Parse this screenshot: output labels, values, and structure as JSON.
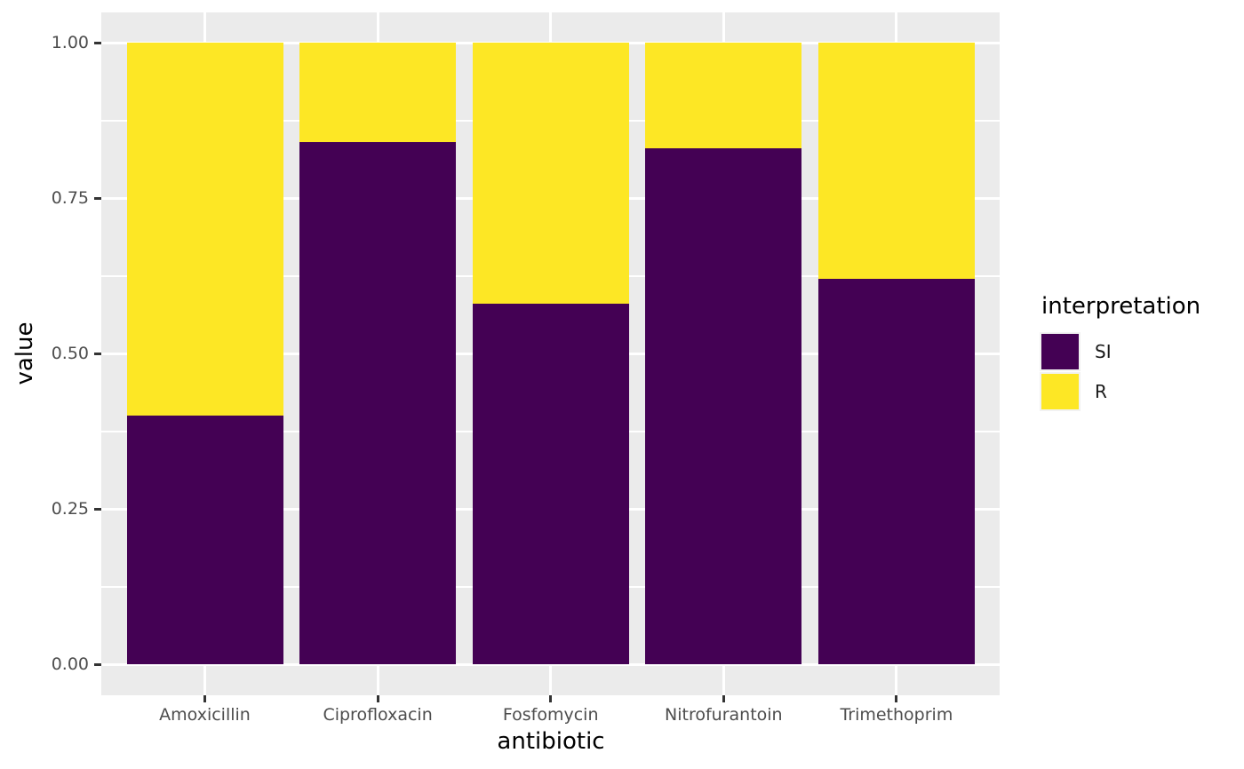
{
  "chart_data": {
    "type": "bar",
    "stacked": true,
    "xlabel": "antibiotic",
    "ylabel": "value",
    "categories": [
      "Amoxicillin",
      "Ciprofloxacin",
      "Fosfomycin",
      "Nitrofurantoin",
      "Trimethoprim"
    ],
    "series": [
      {
        "name": "SI",
        "color": "#440154",
        "values": [
          0.4,
          0.84,
          0.58,
          0.83,
          0.62
        ]
      },
      {
        "name": "R",
        "color": "#FDE725",
        "values": [
          0.6,
          0.16,
          0.42,
          0.17,
          0.38
        ]
      }
    ],
    "ylim": [
      0,
      1
    ],
    "yticks": [
      0,
      0.25,
      0.5,
      0.75,
      1
    ],
    "ytick_labels": [
      "0.00",
      "0.25",
      "0.50",
      "0.75",
      "1.00"
    ],
    "yticks_minor": [
      0.125,
      0.375,
      0.625,
      0.875
    ],
    "legend_title": "interpretation",
    "legend_position": "right",
    "grid": true
  },
  "style": {
    "figure_bg": "#FFFFFF",
    "panel_bg": "#EBEBEB",
    "grid_color": "#FFFFFF",
    "tick_color": "#333333",
    "tick_label_color": "#4D4D4D",
    "axis_title_color": "#000000"
  }
}
